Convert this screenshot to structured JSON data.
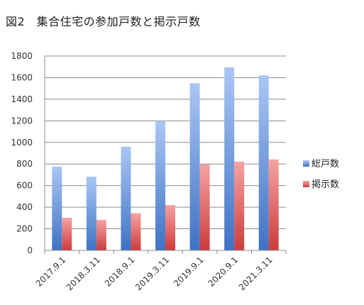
{
  "chart_data": {
    "type": "bar",
    "title": "図2　集合住宅の参加戸数と掲示戸数",
    "categories": [
      "2017.9.1",
      "2018.3.11",
      "2018.9.1",
      "2019.3.11",
      "2019.9.1",
      "2020.9.1",
      "2021.3.11"
    ],
    "series": [
      {
        "name": "総戸数",
        "values": [
          775,
          683,
          960,
          1198,
          1548,
          1695,
          1620
        ],
        "color": "#4f81bd"
      },
      {
        "name": "掲示数",
        "values": [
          302,
          283,
          345,
          420,
          798,
          822,
          842
        ],
        "color": "#c0504d"
      }
    ],
    "ylim": [
      0,
      1800
    ],
    "yticks": [
      0,
      200,
      400,
      600,
      800,
      1000,
      1200,
      1400,
      1600,
      1800
    ],
    "grid": true,
    "legend": "right"
  }
}
